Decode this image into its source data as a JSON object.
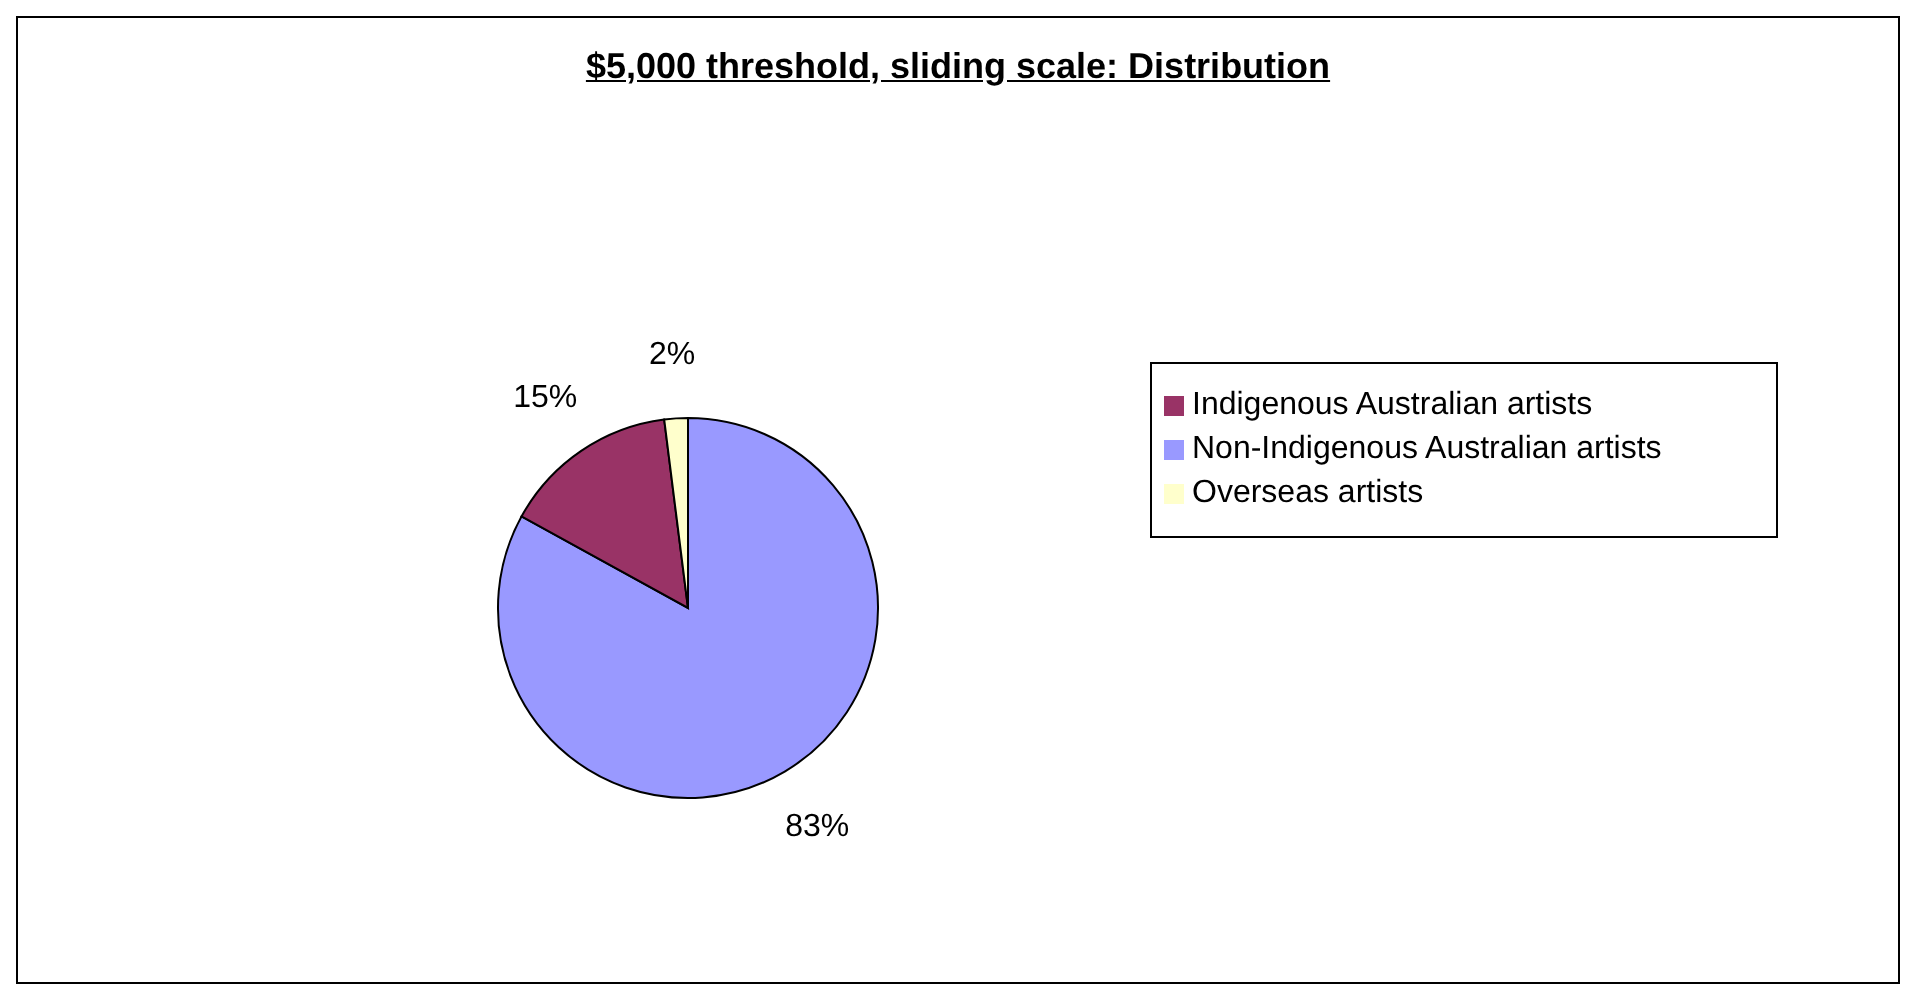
{
  "chart_data": {
    "type": "pie",
    "title": "$5,000 threshold, sliding scale: Distribution",
    "categories": [
      "Non-Indigenous Australian artists",
      "Indigenous Australian artists",
      "Overseas artists"
    ],
    "values": [
      83,
      15,
      2
    ],
    "colors": [
      "#9999ff",
      "#993366",
      "#ffffcc"
    ],
    "value_labels": [
      "83%",
      "15%",
      "2%"
    ],
    "legend": "right"
  }
}
